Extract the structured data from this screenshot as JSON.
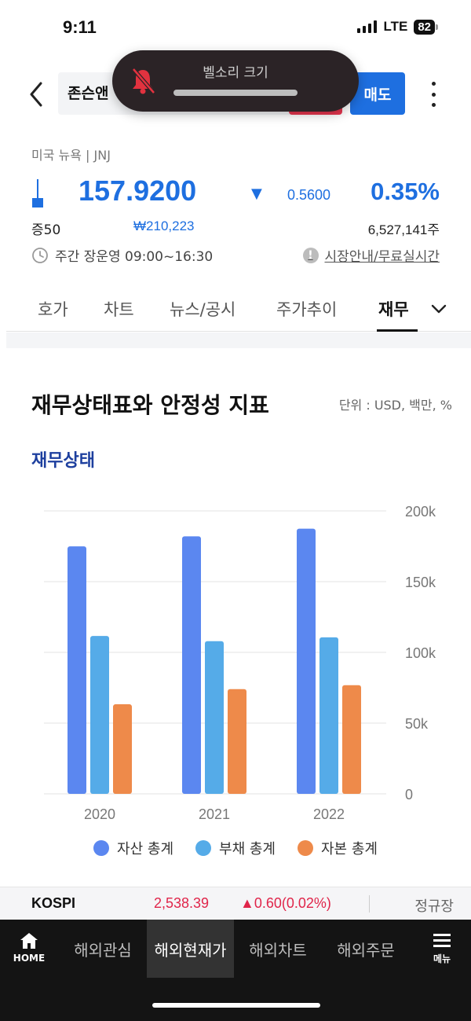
{
  "status_bar": {
    "time": "9:11",
    "network": "LTE",
    "battery": "82"
  },
  "volume_hud": {
    "title": "벨소리 크기"
  },
  "header": {
    "stock_name": "존슨앤",
    "sell_label": "매도"
  },
  "stock": {
    "market": "미국 뉴욕 | JNJ",
    "price": "157.9200",
    "change_arrow": "▼",
    "change": "0.5600",
    "change_pct": "0.35%",
    "margin": "증50",
    "krw_price": "₩210,223",
    "volume": "6,527,141주",
    "session": "주간 장운영 09:00~16:30",
    "market_info_link": "시장안내/무료실시간",
    "info_icon_glyph": "!"
  },
  "tabs": [
    {
      "label": "호가"
    },
    {
      "label": "차트"
    },
    {
      "label": "뉴스/공시"
    },
    {
      "label": "주가추이"
    },
    {
      "label": "재무"
    }
  ],
  "section": {
    "title": "재무상태표와 안정성 지표",
    "unit": "단위 : USD, 백만, %",
    "subtitle": "재무상태"
  },
  "chart_data": {
    "type": "bar",
    "categories": [
      "2020",
      "2021",
      "2022"
    ],
    "series": [
      {
        "name": "자산 총계",
        "color": "#5b87f0",
        "values": [
          174900,
          182000,
          187400
        ]
      },
      {
        "name": "부채 총계",
        "color": "#55abe8",
        "values": [
          111600,
          107900,
          110600
        ]
      },
      {
        "name": "자본 총계",
        "color": "#ee8a4a",
        "values": [
          63300,
          74000,
          76800
        ]
      }
    ],
    "yticks": [
      "200k",
      "150k",
      "100k",
      "50k",
      "0"
    ],
    "ylim": [
      0,
      200000
    ],
    "grid": true,
    "legend": "bottom"
  },
  "ticker": {
    "name": "KOSPI",
    "value": "2,538.39",
    "change": "▲0.60(0.02%)",
    "session": "정규장"
  },
  "bottom_nav": {
    "home": "HOME",
    "items": [
      {
        "label": "해외관심"
      },
      {
        "label": "해외현재가"
      },
      {
        "label": "해외차트"
      },
      {
        "label": "해외주문"
      }
    ],
    "menu": "메뉴"
  }
}
